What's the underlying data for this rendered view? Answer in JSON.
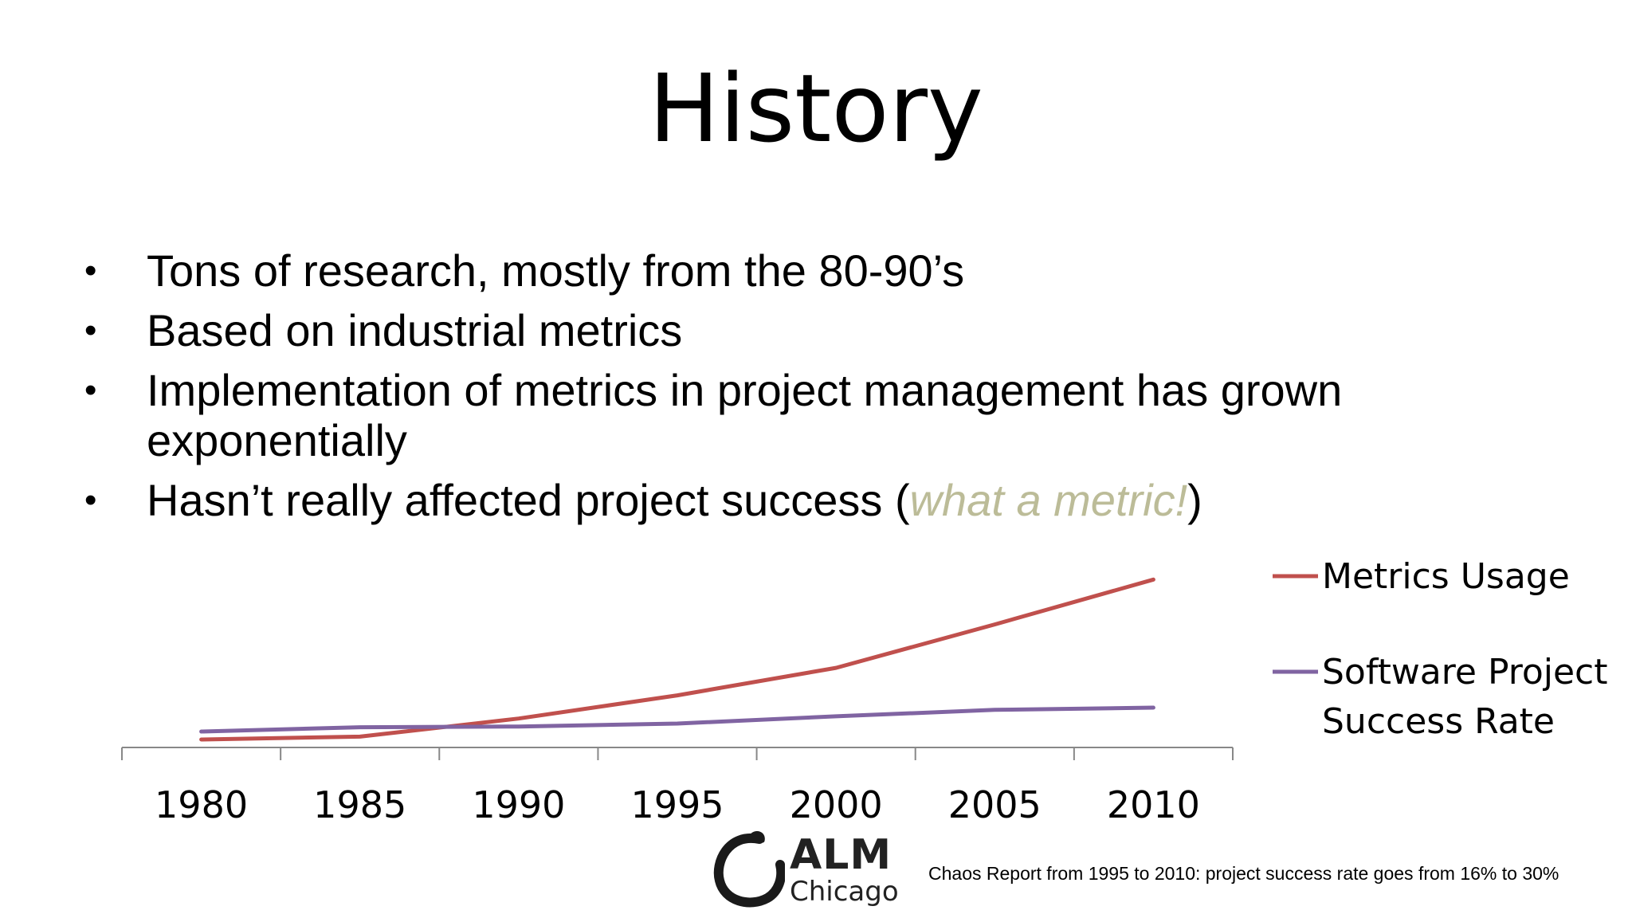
{
  "title": "History",
  "bullets": [
    {
      "text": "Tons of research, mostly from the 80-90’s"
    },
    {
      "text": "Based on industrial metrics"
    },
    {
      "text": "Implementation of metrics in project management has grown exponentially"
    },
    {
      "text_before": "Hasn’t really affected project success (",
      "emphasis": "what a metric!",
      "text_after": ")"
    }
  ],
  "bullet_symbol": "•",
  "chart_data": {
    "type": "line",
    "x": [
      "1980",
      "1985",
      "1990",
      "1995",
      "2000",
      "2005",
      "2010"
    ],
    "series": [
      {
        "name": "Metrics Usage",
        "color": "#c0504d",
        "values": [
          1,
          5,
          30,
          62,
          100,
          160,
          222
        ]
      },
      {
        "name": "Software Project Success Rate",
        "color": "#8064a2",
        "values": [
          12,
          18,
          19,
          23,
          33,
          42,
          45
        ]
      }
    ],
    "ylim": [
      -10,
      230
    ],
    "y_axis_visible": false,
    "grid": false,
    "legend_placement": "right"
  },
  "logo": {
    "name": "ALM",
    "city": "Chicago"
  },
  "footnote": "Chaos Report from 1995 to 2010: project success rate goes from 16% to 30%"
}
